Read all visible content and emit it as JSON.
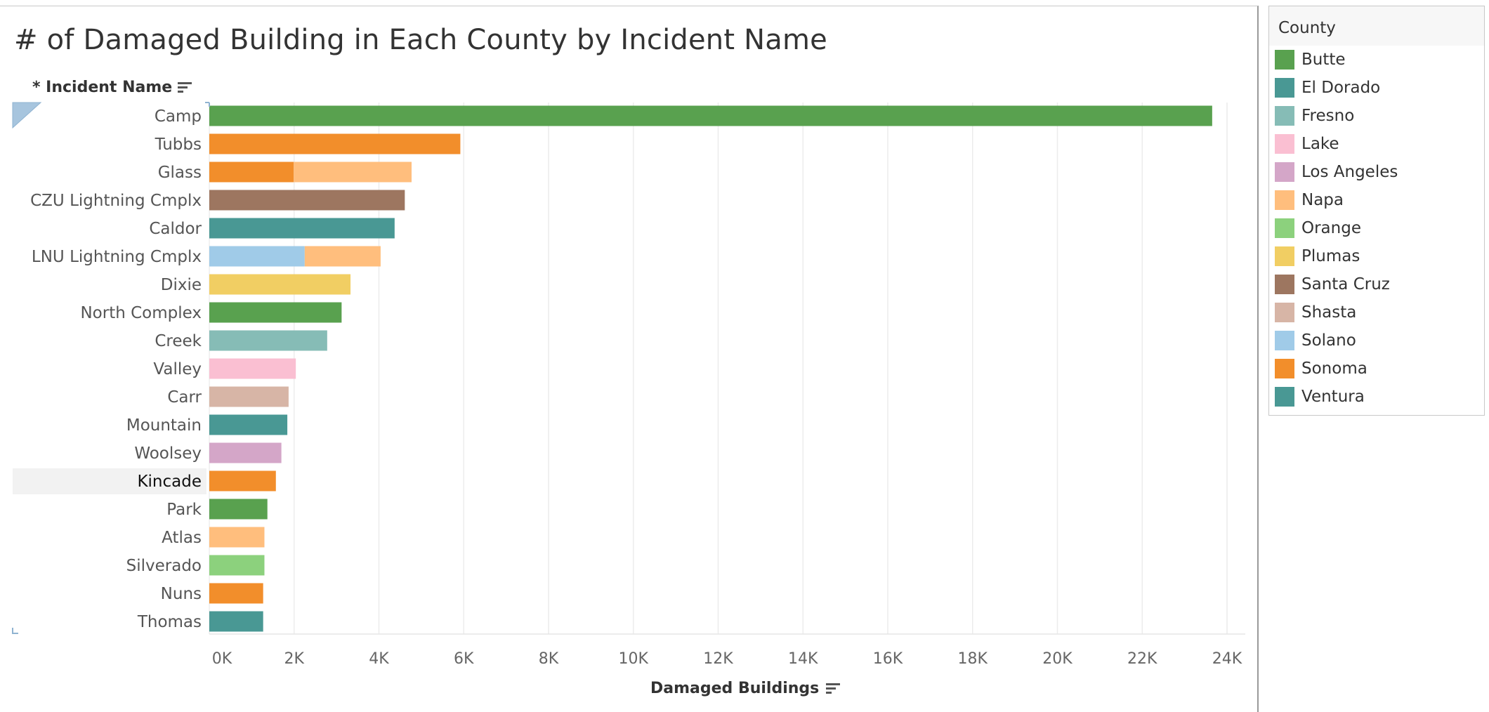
{
  "title": "# of Damaged Building in Each County by Incident Name",
  "row_header": "* Incident Name",
  "selected_row": "Kincade",
  "legend": {
    "title": "County",
    "items": [
      {
        "label": "Butte",
        "color": "#59a14f"
      },
      {
        "label": "El Dorado",
        "color": "#499894"
      },
      {
        "label": "Fresno",
        "color": "#86bcb6"
      },
      {
        "label": "Lake",
        "color": "#fabfd2"
      },
      {
        "label": "Los Angeles",
        "color": "#d4a6c8"
      },
      {
        "label": "Napa",
        "color": "#ffbe7d"
      },
      {
        "label": "Orange",
        "color": "#8cd17d"
      },
      {
        "label": "Plumas",
        "color": "#f1ce63"
      },
      {
        "label": "Santa Cruz",
        "color": "#9d7660"
      },
      {
        "label": "Shasta",
        "color": "#d7b5a6"
      },
      {
        "label": "Solano",
        "color": "#a0cbe8"
      },
      {
        "label": "Sonoma",
        "color": "#f28e2b"
      },
      {
        "label": "Ventura",
        "color": "#499894"
      }
    ]
  },
  "chart_data": {
    "type": "bar",
    "orientation": "horizontal",
    "stacked": true,
    "title": "# of Damaged Building in Each County by Incident Name",
    "xlabel": "Damaged Buildings",
    "ylabel": "* Incident Name",
    "xlim": [
      0,
      25000
    ],
    "x_ticks": [
      0,
      2000,
      4000,
      6000,
      8000,
      10000,
      12000,
      14000,
      16000,
      18000,
      20000,
      22000,
      24000
    ],
    "x_tick_labels": [
      "0K",
      "2K",
      "4K",
      "6K",
      "8K",
      "10K",
      "12K",
      "14K",
      "16K",
      "18K",
      "20K",
      "22K",
      "24K"
    ],
    "grid": true,
    "legend_position": "right",
    "categories": [
      "Camp",
      "Tubbs",
      "Glass",
      "CZU Lightning Cmplx",
      "Caldor",
      "LNU Lightning Cmplx",
      "Dixie",
      "North Complex",
      "Creek",
      "Valley",
      "Carr",
      "Mountain",
      "Woolsey",
      "Kincade",
      "Park",
      "Atlas",
      "Silverado",
      "Nuns",
      "Thomas"
    ],
    "bars": [
      {
        "category": "Camp",
        "segments": [
          {
            "county": "Butte",
            "value": 23650
          }
        ]
      },
      {
        "category": "Tubbs",
        "segments": [
          {
            "county": "Sonoma",
            "value": 5920
          }
        ]
      },
      {
        "category": "Glass",
        "segments": [
          {
            "county": "Sonoma",
            "value": 1990
          },
          {
            "county": "Napa",
            "value": 2780
          }
        ]
      },
      {
        "category": "CZU Lightning Cmplx",
        "segments": [
          {
            "county": "Santa Cruz",
            "value": 4610
          }
        ]
      },
      {
        "category": "Caldor",
        "segments": [
          {
            "county": "El Dorado",
            "value": 4370
          }
        ]
      },
      {
        "category": "LNU Lightning Cmplx",
        "segments": [
          {
            "county": "Solano",
            "value": 2250
          },
          {
            "county": "Napa",
            "value": 1790
          }
        ]
      },
      {
        "category": "Dixie",
        "segments": [
          {
            "county": "Plumas",
            "value": 3330
          }
        ]
      },
      {
        "category": "North Complex",
        "segments": [
          {
            "county": "Butte",
            "value": 3120
          }
        ]
      },
      {
        "category": "Creek",
        "segments": [
          {
            "county": "Fresno",
            "value": 2780
          }
        ]
      },
      {
        "category": "Valley",
        "segments": [
          {
            "county": "Lake",
            "value": 2040
          }
        ]
      },
      {
        "category": "Carr",
        "segments": [
          {
            "county": "Shasta",
            "value": 1870
          }
        ]
      },
      {
        "category": "Mountain",
        "segments": [
          {
            "county": "El Dorado",
            "value": 1840
          }
        ]
      },
      {
        "category": "Woolsey",
        "segments": [
          {
            "county": "Los Angeles",
            "value": 1700
          }
        ]
      },
      {
        "category": "Kincade",
        "segments": [
          {
            "county": "Sonoma",
            "value": 1570
          }
        ]
      },
      {
        "category": "Park",
        "segments": [
          {
            "county": "Butte",
            "value": 1370
          }
        ]
      },
      {
        "category": "Atlas",
        "segments": [
          {
            "county": "Napa",
            "value": 1300
          }
        ]
      },
      {
        "category": "Silverado",
        "segments": [
          {
            "county": "Orange",
            "value": 1300
          }
        ]
      },
      {
        "category": "Nuns",
        "segments": [
          {
            "county": "Sonoma",
            "value": 1270
          }
        ]
      },
      {
        "category": "Thomas",
        "segments": [
          {
            "county": "Ventura",
            "value": 1270
          }
        ]
      }
    ]
  }
}
